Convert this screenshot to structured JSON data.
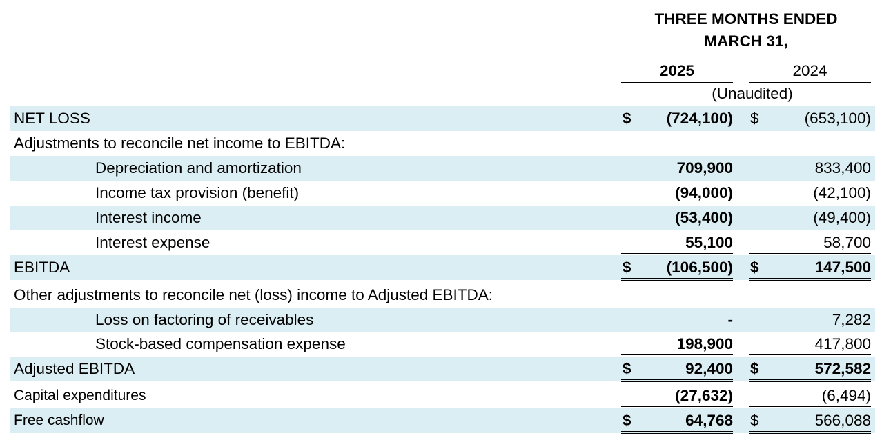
{
  "header": {
    "period_title_line1": "THREE MONTHS ENDED",
    "period_title_line2": "MARCH 31,",
    "year_current": "2025",
    "year_prior": "2024",
    "unaudited": "(Unaudited)"
  },
  "rows": [
    {
      "label": "NET LOSS",
      "cur25": "$",
      "v25": "(724,100)",
      "cur24": "$",
      "v24": "(653,100)"
    },
    {
      "label": "Adjustments to reconcile net income to EBITDA:"
    },
    {
      "label": "Depreciation and amortization",
      "v25": "709,900",
      "v24": "833,400"
    },
    {
      "label": "Income tax provision (benefit)",
      "v25": "(94,000)",
      "v24": "(42,100)"
    },
    {
      "label": "Interest income",
      "v25": "(53,400)",
      "v24": "(49,400)"
    },
    {
      "label": "Interest expense",
      "v25": "55,100",
      "v24": "58,700"
    },
    {
      "label": "EBITDA",
      "cur25": "$",
      "v25": "(106,500)",
      "cur24": "$",
      "v24": "147,500"
    },
    {
      "label": "Other adjustments to reconcile net (loss) income to Adjusted EBITDA:"
    },
    {
      "label": "Loss on factoring of receivables",
      "v25": "-",
      "v24": "7,282"
    },
    {
      "label": "Stock-based compensation expense",
      "v25": "198,900",
      "v24": "417,800"
    },
    {
      "label": "Adjusted EBITDA",
      "cur25": "$",
      "v25": "92,400",
      "cur24": "$",
      "v24": "572,582"
    },
    {
      "label": "Capital expenditures",
      "v25": "(27,632)",
      "v24": "(6,494)"
    },
    {
      "label": "Free cashflow",
      "cur25": "$",
      "v25": "64,768",
      "cur24": "$",
      "v24": "566,088"
    }
  ],
  "colors": {
    "row_shade": "#dbeef3",
    "text": "#000000"
  }
}
